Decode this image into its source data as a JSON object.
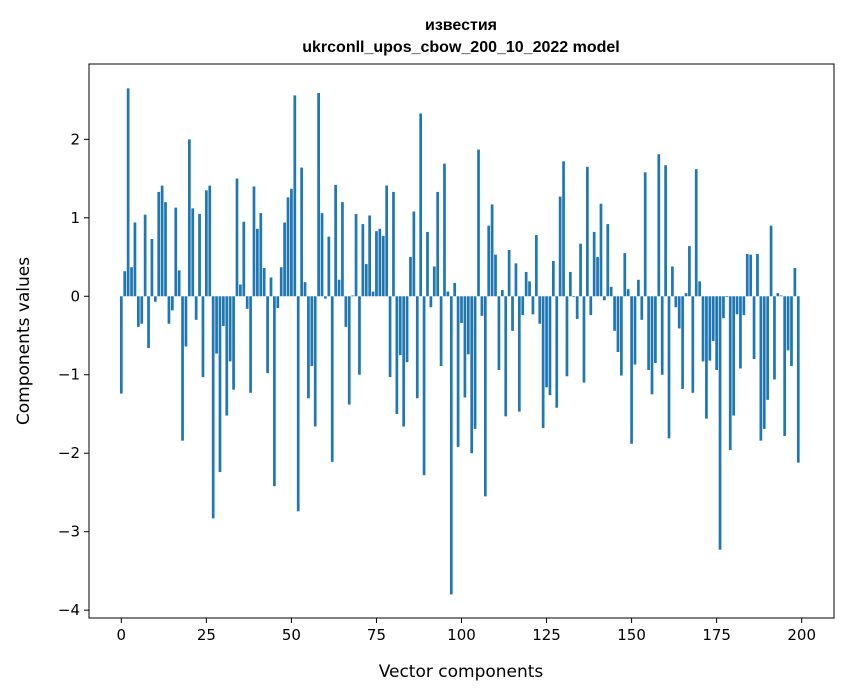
{
  "chart_data": {
    "type": "bar",
    "title": "известия",
    "subtitle": "ukrconll_upos_cbow_200_10_2022 model",
    "xlabel": "Vector components",
    "ylabel": "Components values",
    "xlim": [
      -9.5,
      209.5
    ],
    "ylim": [
      -4.1,
      2.96
    ],
    "xticks": [
      0,
      25,
      50,
      75,
      100,
      125,
      150,
      175,
      200
    ],
    "xtick_labels": [
      "0",
      "25",
      "50",
      "75",
      "100",
      "125",
      "150",
      "175",
      "200"
    ],
    "yticks": [
      -4,
      -3,
      -2,
      -1,
      0,
      1,
      2
    ],
    "ytick_labels": [
      "−4",
      "−3",
      "−2",
      "−1",
      "0",
      "1",
      "2"
    ],
    "grid": false,
    "bar_color": "#1f77b4",
    "values": [
      -1.24,
      0.32,
      2.65,
      0.37,
      0.94,
      -0.39,
      -0.35,
      1.04,
      -0.66,
      0.73,
      -0.07,
      1.33,
      1.41,
      1.2,
      -0.35,
      -0.18,
      1.13,
      0.33,
      -1.84,
      -0.64,
      2.0,
      1.12,
      -0.3,
      1.05,
      -1.03,
      1.35,
      1.41,
      -2.83,
      -0.73,
      -2.24,
      -0.38,
      -1.52,
      -0.83,
      -1.19,
      1.5,
      0.15,
      0.95,
      -0.16,
      -1.23,
      1.4,
      0.86,
      1.06,
      0.36,
      -0.98,
      0.24,
      -2.42,
      -0.15,
      0.37,
      0.94,
      1.26,
      1.37,
      2.56,
      -2.74,
      1.64,
      0.18,
      -1.3,
      -0.89,
      -1.66,
      2.59,
      1.06,
      -0.03,
      0.76,
      -2.11,
      1.42,
      0.21,
      1.2,
      -0.39,
      -1.38,
      0.01,
      1.05,
      -1.0,
      0.92,
      0.41,
      1.03,
      0.06,
      0.83,
      0.86,
      0.77,
      1.41,
      -1.03,
      1.33,
      -1.5,
      -0.75,
      -1.66,
      -0.84,
      0.5,
      1.08,
      -1.3,
      2.33,
      -2.28,
      0.82,
      -0.14,
      0.38,
      1.33,
      -0.89,
      1.69,
      0.06,
      -3.8,
      0.17,
      -1.92,
      -0.34,
      -1.29,
      -0.74,
      -2.0,
      -1.69,
      1.87,
      -0.25,
      -2.55,
      0.9,
      1.17,
      0.53,
      -0.94,
      0.08,
      -1.53,
      0.59,
      -0.44,
      0.42,
      -1.47,
      -0.24,
      0.31,
      0.19,
      -0.23,
      0.78,
      -0.35,
      -1.68,
      -1.16,
      -1.26,
      0.45,
      -1.42,
      1.27,
      1.72,
      -1.02,
      0.31,
      -0.01,
      -0.29,
      0.67,
      -1.1,
      1.65,
      -0.24,
      0.82,
      0.5,
      1.18,
      -0.05,
      0.92,
      0.12,
      -0.44,
      -0.71,
      -1.01,
      0.55,
      0.09,
      -1.88,
      -0.87,
      0.21,
      -0.3,
      1.58,
      -0.94,
      -1.25,
      -0.85,
      1.81,
      -1.0,
      1.67,
      -1.81,
      0.38,
      -0.14,
      -0.41,
      -1.18,
      0.04,
      0.64,
      -1.23,
      1.62,
      0.19,
      -0.83,
      -1.56,
      -0.82,
      -0.57,
      -0.94,
      -3.23,
      -0.28,
      -0.01,
      -1.96,
      -1.52,
      -0.23,
      -0.92,
      -0.24,
      0.54,
      0.53,
      -0.8,
      0.54,
      -1.84,
      -1.69,
      -1.32,
      0.9,
      -1.06,
      0.04,
      0.01,
      -1.78,
      -0.69,
      -0.89,
      0.36,
      -2.12
    ]
  }
}
